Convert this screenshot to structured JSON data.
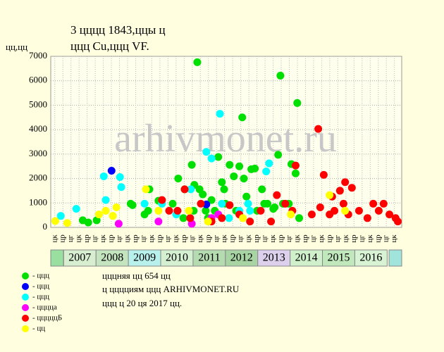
{
  "chart_data": {
    "type": "scatter",
    "title": "3 цццц 1843,ццы ц",
    "subtitle": "ццц Cu,ццц VF.",
    "y_label": "цц,цц",
    "watermark": "arhivmonet.ru",
    "notes": [
      "цццняя цц 654 цц",
      "ц цццциям ццц ARHIVMONET.RU",
      "ццц ц 20 ця 2017 цц."
    ],
    "xlim": [
      2006.6,
      2017.45
    ],
    "ylim": [
      0,
      7000
    ],
    "yticks": [
      0,
      1000,
      2000,
      3000,
      4000,
      5000,
      6000,
      7000
    ],
    "grid": true,
    "xticks": [
      {
        "value": 2006.725,
        "label": "цк"
      },
      {
        "value": 2006.975,
        "label": "цр"
      },
      {
        "value": 2007.225,
        "label": "цг"
      },
      {
        "value": 2007.475,
        "label": "цк"
      },
      {
        "value": 2007.725,
        "label": "цр"
      },
      {
        "value": 2007.975,
        "label": "цг"
      },
      {
        "value": 2008.225,
        "label": "цк"
      },
      {
        "value": 2008.475,
        "label": "цр"
      },
      {
        "value": 2008.725,
        "label": "цг"
      },
      {
        "value": 2008.975,
        "label": "цк"
      },
      {
        "value": 2009.225,
        "label": "цр"
      },
      {
        "value": 2009.475,
        "label": "цг"
      },
      {
        "value": 2009.725,
        "label": "цк"
      },
      {
        "value": 2009.975,
        "label": "цр"
      },
      {
        "value": 2010.225,
        "label": "цг"
      },
      {
        "value": 2010.475,
        "label": "цк"
      },
      {
        "value": 2010.725,
        "label": "цр"
      },
      {
        "value": 2010.975,
        "label": "цг"
      },
      {
        "value": 2011.225,
        "label": "цк"
      },
      {
        "value": 2011.475,
        "label": "цр"
      },
      {
        "value": 2011.725,
        "label": "цг"
      },
      {
        "value": 2011.975,
        "label": "цк"
      },
      {
        "value": 2012.225,
        "label": "цр"
      },
      {
        "value": 2012.475,
        "label": "цг"
      },
      {
        "value": 2012.725,
        "label": "цк"
      },
      {
        "value": 2012.975,
        "label": "цр"
      },
      {
        "value": 2013.225,
        "label": "цг"
      },
      {
        "value": 2013.475,
        "label": "цк"
      },
      {
        "value": 2013.725,
        "label": "цр"
      },
      {
        "value": 2013.975,
        "label": "цг"
      },
      {
        "value": 2014.225,
        "label": "цк"
      },
      {
        "value": 2014.475,
        "label": "цр"
      },
      {
        "value": 2014.725,
        "label": "цг"
      },
      {
        "value": 2014.975,
        "label": "цк"
      },
      {
        "value": 2015.225,
        "label": "цр"
      },
      {
        "value": 2015.475,
        "label": "цг"
      },
      {
        "value": 2015.725,
        "label": "цк"
      },
      {
        "value": 2015.975,
        "label": "цр"
      },
      {
        "value": 2016.225,
        "label": "цг"
      },
      {
        "value": 2016.475,
        "label": "цк"
      },
      {
        "value": 2016.725,
        "label": "цр"
      },
      {
        "value": 2016.975,
        "label": "цг"
      },
      {
        "value": 2017.225,
        "label": "цк"
      }
    ],
    "year_ticks": [
      {
        "value": 2007,
        "label": "2007"
      },
      {
        "value": 2008,
        "label": "2008"
      },
      {
        "value": 2009,
        "label": "2009"
      },
      {
        "value": 2010,
        "label": "2010"
      },
      {
        "value": 2011,
        "label": "2011"
      },
      {
        "value": 2012,
        "label": "2012"
      },
      {
        "value": 2013,
        "label": "2013"
      },
      {
        "value": 2014,
        "label": "2014"
      },
      {
        "value": 2015,
        "label": "2015"
      },
      {
        "value": 2016,
        "label": "2016"
      }
    ],
    "year_colors": [
      "#d8eed0",
      "#c4e4c0",
      "#b8f0ec",
      "#d4f0d0",
      "#b4dcb0",
      "#a8d4a4",
      "#dcd0ec",
      "#d0f0cc",
      "#c0e8bc",
      "#d8f2d4"
    ],
    "series": [
      {
        "name": "- ццц",
        "color": "#00e000",
        "x": [
          2007.59,
          2007.76,
          2008.02,
          2009.07,
          2009.13,
          2009.5,
          2009.61,
          2009.65,
          2009.93,
          2010.37,
          2010.54,
          2010.74,
          2010.96,
          2011.04,
          2011.13,
          2011.2,
          2011.3,
          2011.39,
          2011.57,
          2011.78,
          2011.89,
          2011.96,
          2012.13,
          2012.26,
          2012.43,
          2012.52,
          2012.57,
          2012.65,
          2012.8,
          2012.91,
          2013.13,
          2013.3,
          2013.48,
          2013.63,
          2013.7,
          2013.78,
          2013.96,
          2014.04,
          2014.17,
          2014.22,
          2014.28,
          2011.67,
          2012.0,
          2012.33,
          2012.98,
          2013.2,
          2013.52,
          2011.02,
          2011.46,
          2010.7
        ],
        "values": [
          290,
          200,
          290,
          970,
          910,
          530,
          680,
          1560,
          1090,
          970,
          2000,
          1560,
          2560,
          1740,
          6760,
          1560,
          1350,
          680,
          1120,
          2880,
          1850,
          1560,
          2560,
          2090,
          2500,
          4500,
          2000,
          1260,
          2380,
          2410,
          1560,
          970,
          760,
          2970,
          6210,
          970,
          970,
          2590,
          2210,
          5090,
          380,
          680,
          970,
          680,
          680,
          970,
          820,
          680,
          380,
          380
        ]
      },
      {
        "name": "- ццц",
        "color": "#0000ff",
        "x": [
          2008.48,
          2011.41
        ],
        "values": [
          2320,
          940
        ]
      },
      {
        "name": "- ццц",
        "color": "#00ffff",
        "x": [
          2006.91,
          2007.39,
          2008.24,
          2008.3,
          2008.74,
          2008.78,
          2009.5,
          2010.04,
          2010.93,
          2011.41,
          2011.57,
          2011.83,
          2011.89,
          2012.43,
          2012.7,
          2013.26,
          2013.35,
          2012.76,
          2012.11,
          2010.48
        ],
        "values": [
          470,
          760,
          2090,
          1120,
          2060,
          1650,
          970,
          970,
          1560,
          3090,
          2820,
          4650,
          970,
          680,
          970,
          2290,
          2620,
          680,
          380,
          530
        ]
      },
      {
        "name": "- цццца",
        "color": "#ff00ff",
        "x": [
          2008.7,
          2009.93,
          2010.96,
          2011.78,
          2011.57
        ],
        "values": [
          150,
          240,
          150,
          530,
          380
        ]
      },
      {
        "name": "- цццццБ",
        "color": "#ff0000",
        "x": [
          2010.04,
          2010.26,
          2010.52,
          2010.74,
          2010.91,
          2011.24,
          2011.57,
          2011.89,
          2012.13,
          2012.43,
          2012.76,
          2013.09,
          2013.41,
          2013.59,
          2013.85,
          2014.07,
          2014.17,
          2014.67,
          2014.87,
          2014.93,
          2015.04,
          2015.22,
          2015.37,
          2015.54,
          2015.7,
          2015.8,
          2015.91,
          2016.13,
          2016.39,
          2016.57,
          2016.74,
          2016.89,
          2017.07,
          2017.26,
          2017.33,
          2015.3,
          2015.65
        ],
        "values": [
          1120,
          680,
          680,
          1560,
          380,
          970,
          240,
          380,
          910,
          530,
          240,
          680,
          240,
          1320,
          970,
          680,
          2530,
          530,
          4030,
          820,
          2150,
          530,
          680,
          1500,
          1850,
          530,
          1620,
          680,
          380,
          970,
          680,
          970,
          530,
          380,
          240,
          1260,
          970
        ]
      },
      {
        "name": "- цц",
        "color": "#ffff00",
        "x": [
          2006.74,
          2007.11,
          2008.09,
          2008.3,
          2008.63,
          2009.54,
          2009.93,
          2010.87,
          2011.46,
          2012.54,
          2014.02,
          2015.22,
          2015.7,
          2008.52
        ],
        "values": [
          260,
          180,
          530,
          680,
          820,
          1560,
          680,
          680,
          240,
          380,
          530,
          1320,
          680,
          470
        ]
      }
    ]
  }
}
